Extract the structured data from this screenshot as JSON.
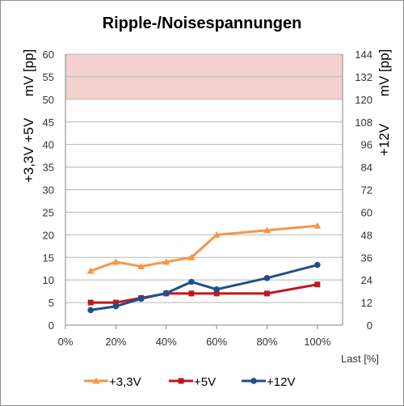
{
  "chart_data": {
    "type": "line",
    "title": "Ripple-/Noisespannungen",
    "xlabel": "Last [%]",
    "ylabel_left_top": "mV [pp]",
    "ylabel_left_bottom": "+3,3V +5V",
    "ylabel_right_top": "mV [pp]",
    "ylabel_right_bottom": "+12V",
    "x_ticks": [
      "0%",
      "20%",
      "40%",
      "60%",
      "80%",
      "100%"
    ],
    "xlim": [
      0,
      110
    ],
    "y_left_ticks": [
      "0",
      "5",
      "10",
      "15",
      "20",
      "25",
      "30",
      "35",
      "40",
      "45",
      "50",
      "55",
      "60"
    ],
    "y_right_ticks": [
      "0",
      "12",
      "24",
      "36",
      "48",
      "60",
      "72",
      "84",
      "96",
      "108",
      "120",
      "132",
      "144"
    ],
    "ylim_left": [
      0,
      60
    ],
    "ylim_right": [
      0,
      144
    ],
    "limit_band_left": [
      50,
      60
    ],
    "limit_band_color": "#f4d0d0",
    "grid": true,
    "legend_position": "bottom",
    "series": [
      {
        "name": "+3,3V",
        "axis": "left",
        "color": "#f79646",
        "marker": "triangle",
        "x": [
          10,
          20,
          30,
          40,
          50,
          60,
          80,
          100
        ],
        "y": [
          12,
          14,
          13,
          14,
          15,
          20,
          21,
          22
        ]
      },
      {
        "name": "+5V",
        "axis": "left",
        "color": "#c0181b",
        "marker": "square",
        "x": [
          10,
          20,
          30,
          40,
          50,
          60,
          80,
          100
        ],
        "y": [
          5,
          5,
          6,
          7,
          7,
          7,
          7,
          9
        ]
      },
      {
        "name": "+12V",
        "axis": "right",
        "color": "#1f4e8c",
        "marker": "circle",
        "x": [
          10,
          20,
          30,
          40,
          50,
          60,
          80,
          100
        ],
        "y": [
          8,
          10,
          14,
          17,
          23,
          19,
          25,
          32
        ]
      }
    ]
  }
}
